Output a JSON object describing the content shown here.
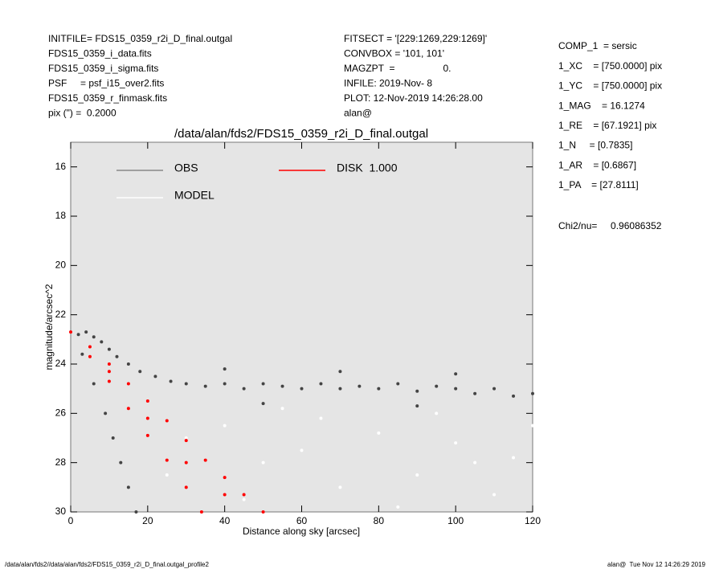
{
  "header": {
    "left": [
      "INITFILE= FDS15_0359_r2i_D_final.outgal",
      "FDS15_0359_i_data.fits",
      "FDS15_0359_i_sigma.fits",
      "PSF     = psf_i15_over2.fits",
      "FDS15_0359_r_finmask.fits",
      "pix (\") =  0.2000"
    ],
    "middle": [
      "FITSECT = '[229:1269,229:1269]'",
      "CONVBOX = '101, 101'",
      "MAGZPT  =                  0.",
      "INFILE: 2019-Nov- 8",
      "PLOT: 12-Nov-2019 14:26:28.00",
      "alan@"
    ],
    "right": [
      "COMP_1  = sersic",
      "1_XC    = [750.0000] pix",
      "1_YC    = [750.0000] pix",
      "1_MAG    = 16.1274",
      "1_RE    = [67.1921] pix",
      "1_N     = [0.7835]",
      "1_AR    = [0.6867]",
      "1_PA    = [27.8111]"
    ],
    "chi2": "Chi2/nu=     0.96086352"
  },
  "footer": {
    "left": "/data/alan/fds2//data/alan/fds2/FDS15_0359_r2i_D_final.outgal_profile2",
    "right": "alan@  Tue Nov 12 14:26:29 2019"
  },
  "chart_data": {
    "type": "scatter",
    "title": "/data/alan/fds2/FDS15_0359_r2i_D_final.outgal",
    "x_label": "Distance along sky [arcsec]",
    "y_label": "magnitude/arcsec^2",
    "xlim": [
      0,
      120
    ],
    "xticks": [
      0,
      20,
      40,
      60,
      80,
      100,
      120
    ],
    "ylim": [
      15,
      30
    ],
    "y_inverted": true,
    "yticks": [
      16,
      18,
      20,
      22,
      24,
      26,
      28,
      30
    ],
    "series": [
      {
        "name": "OBS",
        "color": "#444444",
        "legend_color": "#888888",
        "x": [
          2,
          4,
          6,
          8,
          10,
          12,
          15,
          18,
          22,
          26,
          30,
          35,
          40,
          45,
          50,
          55,
          60,
          65,
          70,
          75,
          80,
          85,
          90,
          95,
          100,
          105,
          110,
          115,
          120,
          40,
          70,
          100,
          50,
          90,
          3,
          6,
          9,
          11,
          13,
          15,
          17
        ],
        "values": [
          22.8,
          22.7,
          22.9,
          23.1,
          23.4,
          23.7,
          24.0,
          24.3,
          24.5,
          24.7,
          24.8,
          24.9,
          24.8,
          25.0,
          24.8,
          24.9,
          25.0,
          24.8,
          25.0,
          24.9,
          25.0,
          24.8,
          25.1,
          24.9,
          25.0,
          25.2,
          25.0,
          25.3,
          25.2,
          24.2,
          24.3,
          24.4,
          25.6,
          25.7,
          23.6,
          24.8,
          26.0,
          27.0,
          28.0,
          29.0,
          30.0
        ]
      },
      {
        "name": "MODEL",
        "color": "#ffffff",
        "legend_color": "#ffffff",
        "x": [
          30,
          40,
          50,
          60,
          70,
          80,
          90,
          100,
          110,
          120,
          45,
          65,
          85,
          105,
          25,
          55,
          95,
          115
        ],
        "values": [
          27,
          26.5,
          28,
          27.5,
          29,
          26.8,
          28.5,
          27.2,
          29.3,
          26.5,
          29.5,
          26.2,
          29.8,
          28,
          28.5,
          25.8,
          26,
          27.8
        ]
      },
      {
        "name": "DISK  1.000",
        "color": "#ff0000",
        "legend_color": "#ff0000",
        "x": [
          0,
          5,
          10,
          15,
          20,
          25,
          30,
          34,
          5,
          10,
          15,
          20,
          25,
          30,
          35,
          40,
          45,
          50,
          10,
          20,
          30,
          40
        ],
        "values": [
          22.7,
          23.7,
          24.7,
          25.8,
          26.9,
          27.9,
          29.0,
          30.0,
          23.3,
          24.0,
          24.8,
          25.5,
          26.3,
          27.1,
          27.9,
          28.6,
          29.3,
          30.0,
          24.3,
          26.2,
          28,
          29.3
        ]
      }
    ]
  }
}
